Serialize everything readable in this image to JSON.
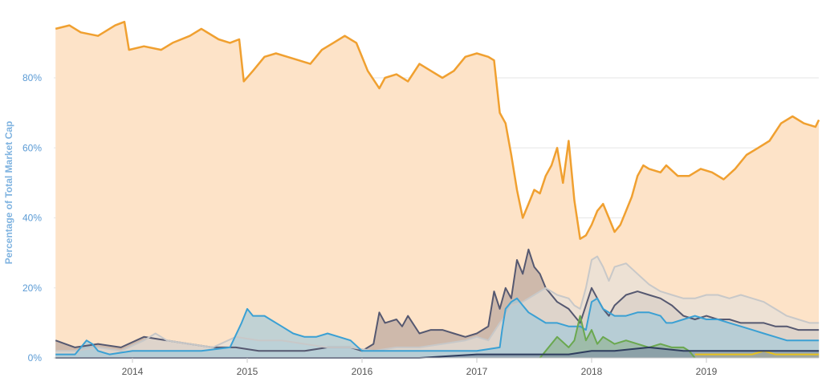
{
  "chart_data": {
    "type": "area",
    "ylabel": "Percentage of Total Market Cap",
    "y_ticks": [
      "0%",
      "20%",
      "40%",
      "60%",
      "80%"
    ],
    "y_tick_values": [
      0,
      20,
      40,
      60,
      80
    ],
    "x_ticks": [
      "2014",
      "2015",
      "2016",
      "2017",
      "2018",
      "2019"
    ],
    "x_tick_values": [
      2014,
      2015,
      2016,
      2017,
      2018,
      2019
    ],
    "xlim": [
      2013.33,
      2019.98
    ],
    "ylim": [
      0,
      100
    ],
    "grid": "horizontal",
    "series": [
      {
        "key": "s1",
        "color": "#f0a030",
        "fill": "#fde3c8",
        "x": [
          2013.33,
          2013.45,
          2013.55,
          2013.7,
          2013.85,
          2013.93,
          2013.97,
          2014.1,
          2014.25,
          2014.35,
          2014.5,
          2014.6,
          2014.75,
          2014.85,
          2014.93,
          2014.97,
          2015.05,
          2015.15,
          2015.25,
          2015.35,
          2015.45,
          2015.55,
          2015.65,
          2015.75,
          2015.85,
          2015.95,
          2016.05,
          2016.15,
          2016.2,
          2016.3,
          2016.4,
          2016.5,
          2016.6,
          2016.7,
          2016.8,
          2016.9,
          2017.0,
          2017.1,
          2017.15,
          2017.2,
          2017.25,
          2017.3,
          2017.35,
          2017.4,
          2017.45,
          2017.5,
          2017.55,
          2017.6,
          2017.65,
          2017.7,
          2017.75,
          2017.8,
          2017.85,
          2017.9,
          2017.95,
          2018.0,
          2018.05,
          2018.1,
          2018.15,
          2018.2,
          2018.25,
          2018.3,
          2018.35,
          2018.4,
          2018.45,
          2018.5,
          2018.6,
          2018.65,
          2018.75,
          2018.85,
          2018.95,
          2019.05,
          2019.15,
          2019.25,
          2019.35,
          2019.45,
          2019.55,
          2019.65,
          2019.75,
          2019.85,
          2019.95,
          2019.98
        ],
        "y": [
          94,
          95,
          93,
          92,
          95,
          96,
          88,
          89,
          88,
          90,
          92,
          94,
          91,
          90,
          91,
          79,
          82,
          86,
          87,
          86,
          85,
          84,
          88,
          90,
          92,
          90,
          82,
          77,
          80,
          81,
          79,
          84,
          82,
          80,
          82,
          86,
          87,
          86,
          85,
          70,
          67,
          58,
          48,
          40,
          44,
          48,
          47,
          52,
          55,
          60,
          50,
          62,
          45,
          34,
          35,
          38,
          42,
          44,
          40,
          36,
          38,
          42,
          46,
          52,
          55,
          54,
          53,
          55,
          52,
          52,
          54,
          53,
          51,
          54,
          58,
          60,
          62,
          67,
          69,
          67,
          66,
          68
        ]
      },
      {
        "key": "s2",
        "color": "#555870",
        "fill": "#b9a79e",
        "x": [
          2013.33,
          2013.5,
          2013.7,
          2013.9,
          2014.1,
          2014.3,
          2014.5,
          2014.7,
          2014.9,
          2015.1,
          2015.3,
          2015.5,
          2015.7,
          2015.9,
          2016.0,
          2016.1,
          2016.15,
          2016.2,
          2016.3,
          2016.35,
          2016.4,
          2016.5,
          2016.6,
          2016.7,
          2016.8,
          2016.9,
          2017.0,
          2017.1,
          2017.15,
          2017.2,
          2017.25,
          2017.3,
          2017.35,
          2017.4,
          2017.45,
          2017.5,
          2017.55,
          2017.6,
          2017.7,
          2017.8,
          2017.85,
          2017.9,
          2017.95,
          2018.0,
          2018.05,
          2018.1,
          2018.15,
          2018.2,
          2018.3,
          2018.4,
          2018.5,
          2018.6,
          2018.7,
          2018.8,
          2018.9,
          2019.0,
          2019.1,
          2019.2,
          2019.3,
          2019.4,
          2019.5,
          2019.6,
          2019.7,
          2019.8,
          2019.9,
          2019.98
        ],
        "y": [
          5,
          3,
          4,
          3,
          6,
          5,
          4,
          3,
          3,
          2,
          2,
          2,
          3,
          3,
          2,
          4,
          13,
          10,
          11,
          9,
          12,
          7,
          8,
          8,
          7,
          6,
          7,
          9,
          19,
          14,
          20,
          17,
          28,
          24,
          31,
          26,
          24,
          20,
          16,
          14,
          12,
          10,
          15,
          20,
          17,
          14,
          12,
          15,
          18,
          19,
          18,
          17,
          15,
          12,
          11,
          12,
          11,
          11,
          10,
          10,
          10,
          9,
          9,
          8,
          8,
          8
        ]
      },
      {
        "key": "s3",
        "color": "#c8c8c8",
        "fill": "#e6dfd8",
        "x": [
          2013.33,
          2013.5,
          2013.7,
          2013.9,
          2014.1,
          2014.2,
          2014.3,
          2014.5,
          2014.7,
          2014.9,
          2015.1,
          2015.3,
          2015.5,
          2015.7,
          2015.9,
          2016.1,
          2016.3,
          2016.5,
          2016.7,
          2016.9,
          2017.0,
          2017.1,
          2017.2,
          2017.25,
          2017.3,
          2017.4,
          2017.5,
          2017.6,
          2017.7,
          2017.8,
          2017.85,
          2017.9,
          2017.95,
          2018.0,
          2018.05,
          2018.1,
          2018.15,
          2018.2,
          2018.3,
          2018.4,
          2018.5,
          2018.6,
          2018.7,
          2018.8,
          2018.9,
          2019.0,
          2019.1,
          2019.2,
          2019.3,
          2019.4,
          2019.5,
          2019.6,
          2019.7,
          2019.8,
          2019.9,
          2019.98
        ],
        "y": [
          2,
          2,
          3,
          2,
          5,
          7,
          5,
          4,
          3,
          6,
          5,
          5,
          4,
          3,
          3,
          2,
          3,
          3,
          4,
          5,
          6,
          5,
          10,
          12,
          15,
          16,
          18,
          20,
          18,
          17,
          15,
          14,
          20,
          28,
          29,
          26,
          22,
          26,
          27,
          24,
          21,
          19,
          18,
          17,
          17,
          18,
          18,
          17,
          18,
          17,
          16,
          14,
          12,
          11,
          10,
          10
        ]
      },
      {
        "key": "s4",
        "color": "#3aa0d4",
        "fill": "#a6cbd8",
        "x": [
          2013.33,
          2013.5,
          2013.6,
          2013.65,
          2013.7,
          2013.8,
          2014.0,
          2014.3,
          2014.6,
          2014.85,
          2014.95,
          2015.0,
          2015.05,
          2015.15,
          2015.2,
          2015.3,
          2015.4,
          2015.5,
          2015.6,
          2015.7,
          2015.8,
          2015.9,
          2016.0,
          2016.2,
          2016.4,
          2016.6,
          2016.8,
          2017.0,
          2017.2,
          2017.22,
          2017.25,
          2017.3,
          2017.35,
          2017.4,
          2017.45,
          2017.5,
          2017.55,
          2017.6,
          2017.7,
          2017.8,
          2017.9,
          2017.95,
          2018.0,
          2018.05,
          2018.1,
          2018.15,
          2018.2,
          2018.3,
          2018.4,
          2018.5,
          2018.6,
          2018.65,
          2018.7,
          2018.8,
          2018.9,
          2019.0,
          2019.1,
          2019.2,
          2019.3,
          2019.4,
          2019.5,
          2019.6,
          2019.7,
          2019.8,
          2019.9,
          2019.98
        ],
        "y": [
          1,
          1,
          5,
          4,
          2,
          1,
          2,
          2,
          2,
          3,
          10,
          14,
          12,
          12,
          11,
          9,
          7,
          6,
          6,
          7,
          6,
          5,
          2,
          2,
          2,
          2,
          2,
          2,
          3,
          8,
          14,
          16,
          17,
          15,
          13,
          12,
          11,
          10,
          10,
          9,
          9,
          8,
          16,
          17,
          14,
          13,
          12,
          12,
          13,
          13,
          12,
          10,
          10,
          11,
          12,
          11,
          11,
          10,
          9,
          8,
          7,
          6,
          5,
          5,
          5,
          5
        ]
      },
      {
        "key": "s5",
        "color": "#6aa84f",
        "fill": "#93b597",
        "x": [
          2017.55,
          2017.6,
          2017.7,
          2017.8,
          2017.85,
          2017.9,
          2017.95,
          2018.0,
          2018.05,
          2018.1,
          2018.15,
          2018.2,
          2018.3,
          2018.4,
          2018.5,
          2018.6,
          2018.7,
          2018.8,
          2018.85,
          2018.9
        ],
        "y": [
          0,
          2,
          6,
          3,
          5,
          12,
          5,
          8,
          4,
          6,
          5,
          4,
          5,
          4,
          3,
          4,
          3,
          3,
          2,
          0
        ]
      },
      {
        "key": "s6",
        "color": "#e8c11c",
        "fill": "#efd26a",
        "x": [
          2018.9,
          2019.0,
          2019.1,
          2019.2,
          2019.3,
          2019.4,
          2019.5,
          2019.6,
          2019.7,
          2019.8,
          2019.9,
          2019.98
        ],
        "y": [
          1,
          1,
          1,
          1,
          1,
          1,
          2,
          1,
          1,
          1,
          1,
          1
        ]
      },
      {
        "key": "s7",
        "color": "#2e3d5e",
        "fill": "#8596a6",
        "x": [
          2013.33,
          2014.0,
          2015.0,
          2016.0,
          2016.5,
          2017.0,
          2017.5,
          2017.8,
          2018.0,
          2018.2,
          2018.5,
          2018.8,
          2019.0,
          2019.3,
          2019.6,
          2019.98
        ],
        "y": [
          0,
          0,
          0,
          0,
          0,
          1,
          1,
          1,
          2,
          2,
          3,
          2,
          2,
          2,
          2,
          2
        ]
      }
    ]
  }
}
